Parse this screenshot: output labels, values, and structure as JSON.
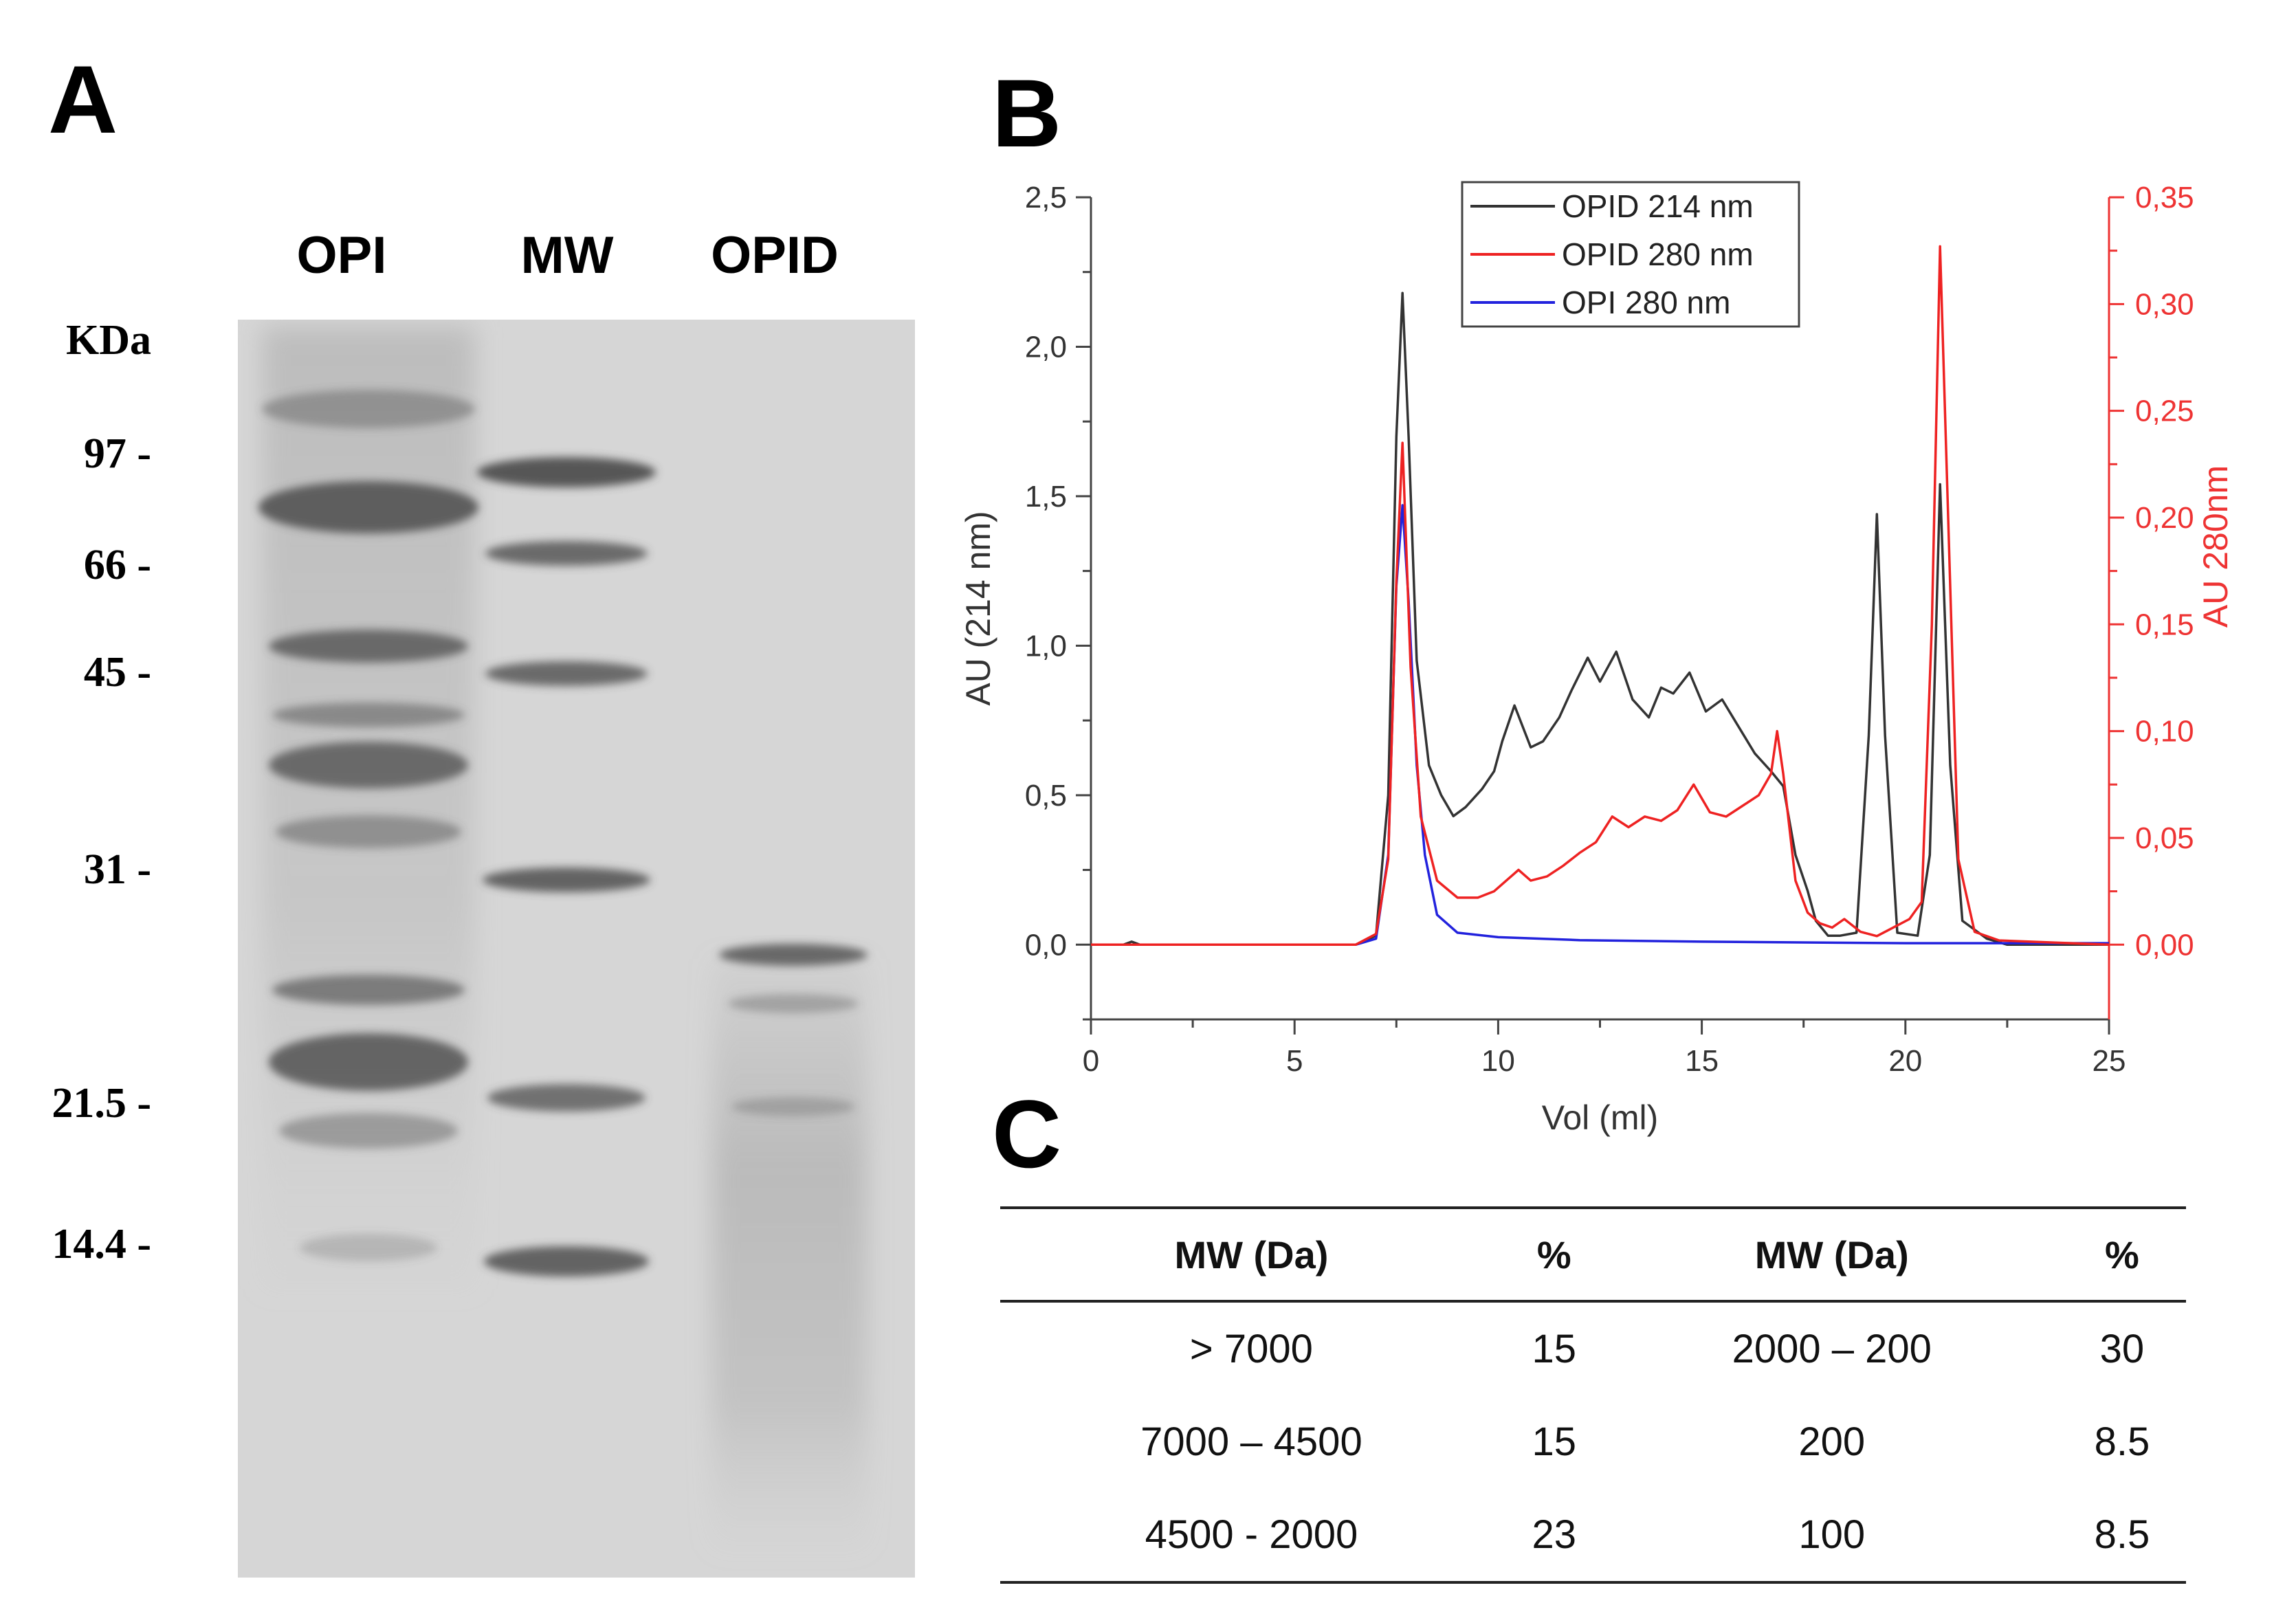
{
  "panels": {
    "a": "A",
    "b": "B",
    "c": "C"
  },
  "gel": {
    "lane_labels": [
      "OPI",
      "MW",
      "OPID"
    ],
    "unit_label": "KDa",
    "markers": [
      "97 -",
      "66 -",
      "45 -",
      "31 -",
      "21.5 -",
      "14.4 -"
    ]
  },
  "chart_data": {
    "type": "line",
    "xlabel": "Vol (ml)",
    "ylabel": "AU (214 nm)",
    "y2label": "AU 280nm",
    "xlim": [
      0,
      25
    ],
    "ylim": [
      -0.25,
      2.5
    ],
    "y2lim": [
      -0.035,
      0.35
    ],
    "xticks": [
      "0",
      "5",
      "10",
      "15",
      "20",
      "25"
    ],
    "yticks": [
      "0,0",
      "0,5",
      "1,0",
      "1,5",
      "2,0",
      "2,5"
    ],
    "y2ticks": [
      "0,00",
      "0,05",
      "0,10",
      "0,15",
      "0,20",
      "0,25",
      "0,30",
      "0,35"
    ],
    "legend_position": "top-center",
    "series": [
      {
        "name": "OPID 214 nm",
        "axis": "left",
        "color": "#333333",
        "points": [
          [
            0,
            0
          ],
          [
            0.8,
            0
          ],
          [
            1,
            0.01
          ],
          [
            1.2,
            0
          ],
          [
            6.5,
            0
          ],
          [
            7,
            0.03
          ],
          [
            7.3,
            0.5
          ],
          [
            7.5,
            1.7
          ],
          [
            7.65,
            2.18
          ],
          [
            7.8,
            1.7
          ],
          [
            8,
            0.95
          ],
          [
            8.3,
            0.6
          ],
          [
            8.6,
            0.5
          ],
          [
            8.9,
            0.43
          ],
          [
            9.2,
            0.46
          ],
          [
            9.6,
            0.52
          ],
          [
            9.9,
            0.58
          ],
          [
            10.1,
            0.68
          ],
          [
            10.4,
            0.8
          ],
          [
            10.8,
            0.66
          ],
          [
            11.1,
            0.68
          ],
          [
            11.5,
            0.76
          ],
          [
            11.8,
            0.85
          ],
          [
            12.2,
            0.96
          ],
          [
            12.5,
            0.88
          ],
          [
            12.9,
            0.98
          ],
          [
            13.3,
            0.82
          ],
          [
            13.7,
            0.76
          ],
          [
            14,
            0.86
          ],
          [
            14.3,
            0.84
          ],
          [
            14.7,
            0.91
          ],
          [
            15.1,
            0.78
          ],
          [
            15.5,
            0.82
          ],
          [
            15.9,
            0.73
          ],
          [
            16.3,
            0.64
          ],
          [
            16.7,
            0.58
          ],
          [
            17,
            0.53
          ],
          [
            17.3,
            0.3
          ],
          [
            17.6,
            0.18
          ],
          [
            17.8,
            0.08
          ],
          [
            18.1,
            0.03
          ],
          [
            18.4,
            0.03
          ],
          [
            18.8,
            0.04
          ],
          [
            19.1,
            0.7
          ],
          [
            19.3,
            1.44
          ],
          [
            19.5,
            0.7
          ],
          [
            19.8,
            0.04
          ],
          [
            20.3,
            0.03
          ],
          [
            20.6,
            0.3
          ],
          [
            20.85,
            1.54
          ],
          [
            21.1,
            0.6
          ],
          [
            21.4,
            0.08
          ],
          [
            22,
            0.02
          ],
          [
            22.5,
            0
          ],
          [
            25,
            0
          ]
        ]
      },
      {
        "name": "OPID 280 nm",
        "axis": "right",
        "color": "#ee2222",
        "points": [
          [
            0,
            0
          ],
          [
            6.5,
            0
          ],
          [
            7,
            0.005
          ],
          [
            7.3,
            0.04
          ],
          [
            7.5,
            0.17
          ],
          [
            7.65,
            0.235
          ],
          [
            7.85,
            0.13
          ],
          [
            8.1,
            0.06
          ],
          [
            8.5,
            0.03
          ],
          [
            9,
            0.022
          ],
          [
            9.5,
            0.022
          ],
          [
            9.9,
            0.025
          ],
          [
            10.2,
            0.03
          ],
          [
            10.5,
            0.035
          ],
          [
            10.8,
            0.03
          ],
          [
            11.2,
            0.032
          ],
          [
            11.6,
            0.037
          ],
          [
            12,
            0.043
          ],
          [
            12.4,
            0.048
          ],
          [
            12.8,
            0.06
          ],
          [
            13.2,
            0.055
          ],
          [
            13.6,
            0.06
          ],
          [
            14,
            0.058
          ],
          [
            14.4,
            0.063
          ],
          [
            14.8,
            0.075
          ],
          [
            15.2,
            0.062
          ],
          [
            15.6,
            0.06
          ],
          [
            16,
            0.065
          ],
          [
            16.4,
            0.07
          ],
          [
            16.7,
            0.08
          ],
          [
            16.85,
            0.1
          ],
          [
            17,
            0.08
          ],
          [
            17.3,
            0.03
          ],
          [
            17.6,
            0.015
          ],
          [
            17.9,
            0.01
          ],
          [
            18.2,
            0.008
          ],
          [
            18.5,
            0.012
          ],
          [
            18.9,
            0.006
          ],
          [
            19.3,
            0.004
          ],
          [
            19.7,
            0.008
          ],
          [
            20.1,
            0.012
          ],
          [
            20.4,
            0.02
          ],
          [
            20.65,
            0.15
          ],
          [
            20.85,
            0.327
          ],
          [
            21.05,
            0.2
          ],
          [
            21.3,
            0.04
          ],
          [
            21.7,
            0.006
          ],
          [
            22.3,
            0.002
          ],
          [
            25,
            0
          ]
        ]
      },
      {
        "name": "OPI 280 nm",
        "axis": "left",
        "color": "#2222dd",
        "points": [
          [
            0,
            0
          ],
          [
            6.5,
            0
          ],
          [
            7,
            0.02
          ],
          [
            7.3,
            0.3
          ],
          [
            7.5,
            1.2
          ],
          [
            7.65,
            1.47
          ],
          [
            7.8,
            1.15
          ],
          [
            8,
            0.6
          ],
          [
            8.2,
            0.3
          ],
          [
            8.5,
            0.1
          ],
          [
            9,
            0.04
          ],
          [
            10,
            0.025
          ],
          [
            12,
            0.015
          ],
          [
            15,
            0.01
          ],
          [
            20,
            0.005
          ],
          [
            25,
            0.005
          ]
        ]
      }
    ]
  },
  "table": {
    "headers": [
      "MW (Da)",
      "%",
      "MW (Da)",
      "%"
    ],
    "rows": [
      [
        "> 7000",
        "15",
        "2000 – 200",
        "30"
      ],
      [
        "7000 – 4500",
        "15",
        "200",
        "8.5"
      ],
      [
        "4500 - 2000",
        "23",
        "100",
        "8.5"
      ]
    ]
  }
}
